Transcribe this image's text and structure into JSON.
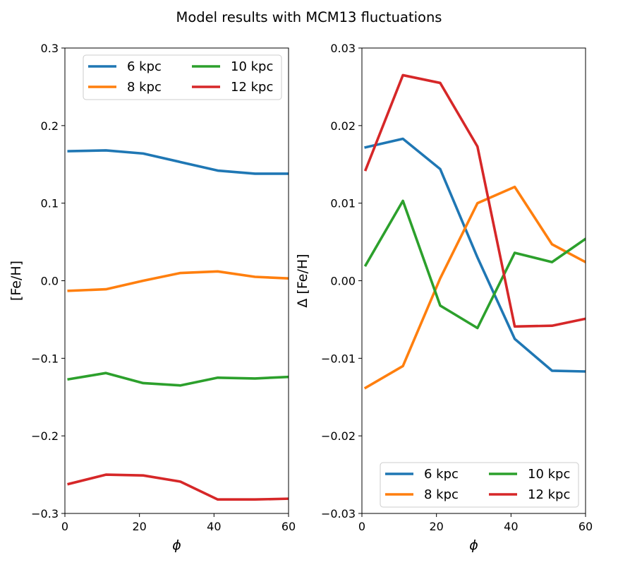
{
  "figure": {
    "title": "Model results with MCM13 fluctuations"
  },
  "chart_data": [
    {
      "type": "line",
      "panel": "left",
      "title": "",
      "xlabel": "ϕ",
      "ylabel": "[Fe/H]",
      "xlim": [
        0,
        60
      ],
      "ylim": [
        -0.3,
        0.3
      ],
      "xticks": [
        0,
        20,
        40,
        60
      ],
      "xtick_labels": [
        "0",
        "20",
        "40",
        "60"
      ],
      "yticks": [
        -0.3,
        -0.2,
        -0.1,
        0.0,
        0.1,
        0.2,
        0.3
      ],
      "ytick_labels": [
        "−0.3",
        "−0.2",
        "−0.1",
        "0.0",
        "0.1",
        "0.2",
        "0.3"
      ],
      "legend_position": "top-right",
      "x": [
        1,
        11,
        21,
        31,
        41,
        51,
        60
      ],
      "series": [
        {
          "name": "6 kpc",
          "color": "#1f77b4",
          "values": [
            0.167,
            0.168,
            0.164,
            0.153,
            0.142,
            0.138,
            0.138
          ]
        },
        {
          "name": "8 kpc",
          "color": "#ff7f0e",
          "values": [
            -0.013,
            -0.011,
            0.0,
            0.01,
            0.012,
            0.005,
            0.003
          ]
        },
        {
          "name": "10 kpc",
          "color": "#2ca02c",
          "values": [
            -0.127,
            -0.119,
            -0.132,
            -0.135,
            -0.125,
            -0.126,
            -0.124
          ]
        },
        {
          "name": "12 kpc",
          "color": "#d62728",
          "values": [
            -0.262,
            -0.25,
            -0.251,
            -0.259,
            -0.282,
            -0.282,
            -0.281
          ]
        }
      ]
    },
    {
      "type": "line",
      "panel": "right",
      "title": "",
      "xlabel": "ϕ",
      "ylabel": "Δ [Fe/H]",
      "xlim": [
        0,
        60
      ],
      "ylim": [
        -0.03,
        0.03
      ],
      "xticks": [
        0,
        20,
        40,
        60
      ],
      "xtick_labels": [
        "0",
        "20",
        "40",
        "60"
      ],
      "yticks": [
        -0.03,
        -0.02,
        -0.01,
        0.0,
        0.01,
        0.02,
        0.03
      ],
      "ytick_labels": [
        "−0.03",
        "−0.02",
        "−0.01",
        "0.00",
        "0.01",
        "0.02",
        "0.03"
      ],
      "legend_position": "bottom-right",
      "x": [
        1,
        11,
        21,
        31,
        41,
        51,
        60
      ],
      "series": [
        {
          "name": "6 kpc",
          "color": "#1f77b4",
          "values": [
            0.0172,
            0.0183,
            0.0144,
            0.003,
            -0.0075,
            -0.0116,
            -0.0117
          ]
        },
        {
          "name": "8 kpc",
          "color": "#ff7f0e",
          "values": [
            -0.0138,
            -0.011,
            0.0003,
            0.01,
            0.0121,
            0.0047,
            0.0024
          ]
        },
        {
          "name": "10 kpc",
          "color": "#2ca02c",
          "values": [
            0.002,
            0.0103,
            -0.0032,
            -0.0061,
            0.0036,
            0.0024,
            0.0054
          ]
        },
        {
          "name": "12 kpc",
          "color": "#d62728",
          "values": [
            0.0143,
            0.0265,
            0.0255,
            0.0173,
            -0.0059,
            -0.0058,
            -0.0049
          ]
        }
      ]
    }
  ]
}
